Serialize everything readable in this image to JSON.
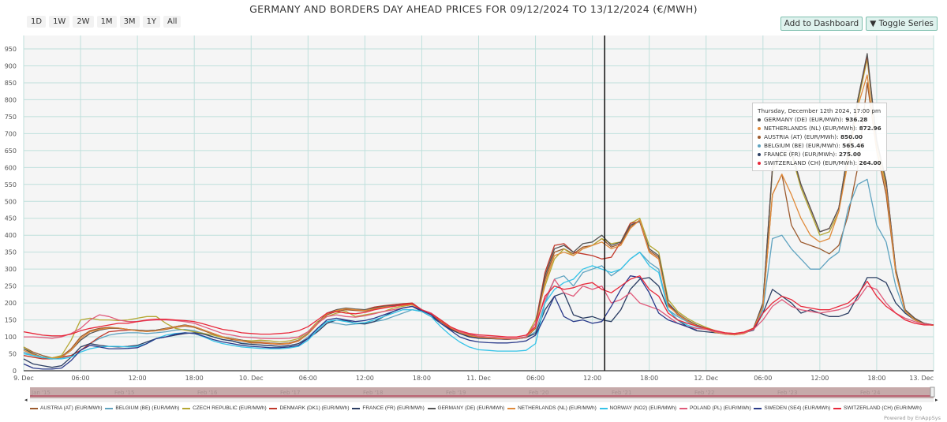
{
  "title": "GERMANY AND BORDERS DAY AHEAD PRICES FOR 09/12/2024 TO 13/12/2024 (€/MWH)",
  "range_buttons": [
    "1D",
    "1W",
    "2W",
    "1M",
    "3M",
    "1Y",
    "All"
  ],
  "toolbar": {
    "add_dashboard": "Add to Dashboard",
    "toggle_series": "Toggle Series"
  },
  "navigator_labels": [
    "Jan '15",
    "Feb '15",
    "Feb '16",
    "Feb '17",
    "Feb '18",
    "Feb '19",
    "Feb '20",
    "Feb '21",
    "Feb '22",
    "Feb '23",
    "Feb '24"
  ],
  "powered_by": "Powered by EnAppSys",
  "tooltip": {
    "header": "Thursday, December 12th 2024, 17:00 pm",
    "rows": [
      {
        "label": "GERMANY (DE) (EUR/MWh): ",
        "value": "936.28",
        "color": "#555555"
      },
      {
        "label": "NETHERLANDS (NL) (EUR/MWh): ",
        "value": "872.96",
        "color": "#e08a3a"
      },
      {
        "label": "AUSTRIA (AT) (EUR/MWh): ",
        "value": "850.00",
        "color": "#9c5a2e"
      },
      {
        "label": "BELGIUM (BE) (EUR/MWh): ",
        "value": "565.46",
        "color": "#5fa3c0"
      },
      {
        "label": "FRANCE (FR) (EUR/MWh): ",
        "value": "275.00",
        "color": "#2c3e63"
      },
      {
        "label": "SWITZERLAND (CH) (EUR/MWh): ",
        "value": "264.00",
        "color": "#e8283a"
      }
    ]
  },
  "chart_data": {
    "type": "line",
    "title": "GERMANY AND BORDERS DAY AHEAD PRICES FOR 09/12/2024 TO 13/12/2024 (€/MWH)",
    "x_start": "2024-12-09 00:00",
    "x_step": "1 hour",
    "x_ticks": [
      "9. Dec",
      "06:00",
      "12:00",
      "18:00",
      "10. Dec",
      "06:00",
      "12:00",
      "18:00",
      "11. Dec",
      "06:00",
      "12:00",
      "18:00",
      "12. Dec",
      "06:00",
      "12:00",
      "18:00",
      "13. Dec"
    ],
    "y_ticks": [
      0,
      50,
      100,
      150,
      200,
      250,
      300,
      350,
      400,
      450,
      500,
      550,
      600,
      650,
      700,
      750,
      800,
      850,
      900,
      950
    ],
    "ylim": [
      0,
      960
    ],
    "grid": true,
    "legend": "bottom",
    "series": [
      {
        "name": "AUSTRIA (AT) (EUR/MWh)",
        "color": "#9c5a2e",
        "values": [
          70,
          55,
          45,
          38,
          42,
          65,
          100,
          118,
          125,
          128,
          126,
          122,
          118,
          116,
          118,
          122,
          128,
          132,
          128,
          118,
          108,
          98,
          92,
          88,
          82,
          82,
          80,
          78,
          80,
          88,
          108,
          138,
          165,
          175,
          180,
          178,
          176,
          182,
          188,
          190,
          193,
          196,
          178,
          168,
          148,
          128,
          112,
          103,
          98,
          96,
          94,
          93,
          94,
          98,
          125,
          270,
          350,
          360,
          345,
          365,
          370,
          390,
          365,
          375,
          425,
          445,
          355,
          335,
          195,
          165,
          148,
          133,
          123,
          113,
          108,
          106,
          110,
          123,
          190,
          520,
          580,
          430,
          380,
          370,
          360,
          345,
          370,
          460,
          600,
          850,
          650,
          520,
          290,
          178,
          152,
          138,
          134
        ]
      },
      {
        "name": "BELGIUM (BE) (EUR/MWh)",
        "color": "#5fa3c0",
        "values": [
          55,
          45,
          38,
          35,
          38,
          45,
          60,
          80,
          95,
          105,
          110,
          112,
          112,
          110,
          112,
          115,
          120,
          122,
          118,
          110,
          100,
          92,
          88,
          82,
          78,
          76,
          74,
          72,
          74,
          80,
          100,
          125,
          145,
          140,
          135,
          138,
          140,
          145,
          150,
          160,
          170,
          180,
          175,
          160,
          145,
          125,
          110,
          100,
          96,
          95,
          94,
          93,
          94,
          98,
          115,
          200,
          270,
          280,
          250,
          290,
          300,
          310,
          280,
          300,
          330,
          350,
          320,
          300,
          180,
          160,
          145,
          130,
          122,
          114,
          110,
          108,
          112,
          120,
          180,
          390,
          400,
          360,
          330,
          300,
          300,
          330,
          350,
          480,
          550,
          565,
          430,
          380,
          250,
          170,
          150,
          138,
          135
        ]
      },
      {
        "name": "CZECH REPUBLIC (EUR/MWh)",
        "color": "#b5a732",
        "values": [
          70,
          50,
          40,
          38,
          45,
          90,
          150,
          155,
          150,
          150,
          148,
          150,
          155,
          160,
          160,
          140,
          125,
          120,
          115,
          110,
          105,
          98,
          95,
          90,
          88,
          90,
          88,
          85,
          88,
          95,
          115,
          145,
          160,
          170,
          175,
          160,
          165,
          170,
          175,
          185,
          190,
          195,
          180,
          165,
          150,
          130,
          115,
          105,
          100,
          98,
          96,
          95,
          95,
          100,
          150,
          250,
          330,
          360,
          340,
          360,
          370,
          390,
          375,
          380,
          435,
          450,
          370,
          350,
          210,
          175,
          155,
          140,
          128,
          118,
          112,
          110,
          114,
          126,
          195,
          590,
          640,
          640,
          540,
          470,
          400,
          410,
          470,
          640,
          790,
          920,
          670,
          550,
          295,
          178,
          152,
          138,
          134
        ]
      },
      {
        "name": "DENMARK (DK1) (EUR/MWh)",
        "color": "#c0392b",
        "values": [
          45,
          40,
          35,
          35,
          40,
          45,
          60,
          80,
          100,
          115,
          118,
          120,
          120,
          118,
          120,
          125,
          130,
          135,
          130,
          120,
          110,
          100,
          95,
          90,
          85,
          83,
          80,
          78,
          80,
          88,
          110,
          140,
          170,
          180,
          183,
          180,
          180,
          188,
          192,
          195,
          198,
          200,
          180,
          165,
          145,
          125,
          112,
          103,
          98,
          96,
          94,
          93,
          94,
          100,
          140,
          290,
          370,
          375,
          350,
          345,
          340,
          330,
          335,
          380,
          435,
          440,
          350,
          330,
          195,
          168,
          148,
          133,
          124,
          114,
          109,
          107,
          111,
          124,
          200,
          600,
          650,
          650,
          550,
          480,
          410,
          420,
          480,
          650,
          800,
          930,
          680,
          560,
          300,
          180,
          155,
          140,
          135
        ]
      },
      {
        "name": "FRANCE (FR) (EUR/MWh)",
        "color": "#2c3e63",
        "values": [
          35,
          20,
          15,
          10,
          15,
          40,
          70,
          80,
          75,
          72,
          70,
          72,
          75,
          85,
          95,
          100,
          105,
          110,
          112,
          108,
          100,
          92,
          88,
          80,
          78,
          76,
          74,
          72,
          74,
          80,
          95,
          115,
          140,
          150,
          148,
          140,
          138,
          145,
          160,
          175,
          185,
          190,
          175,
          160,
          140,
          122,
          110,
          100,
          96,
          95,
          94,
          93,
          94,
          98,
          110,
          180,
          220,
          230,
          165,
          155,
          160,
          150,
          145,
          180,
          240,
          270,
          275,
          250,
          180,
          150,
          130,
          118,
          115,
          112,
          110,
          108,
          112,
          120,
          170,
          240,
          220,
          200,
          170,
          180,
          170,
          160,
          160,
          170,
          220,
          275,
          275,
          260,
          200,
          170,
          150,
          138,
          135
        ]
      },
      {
        "name": "GERMANY (DE) (EUR/MWh)",
        "color": "#555555",
        "values": [
          65,
          50,
          40,
          35,
          40,
          60,
          90,
          110,
          120,
          125,
          125,
          122,
          120,
          118,
          120,
          125,
          130,
          135,
          130,
          120,
          110,
          100,
          95,
          90,
          85,
          85,
          82,
          80,
          82,
          90,
          110,
          140,
          170,
          180,
          185,
          182,
          180,
          185,
          190,
          192,
          195,
          198,
          180,
          170,
          150,
          130,
          115,
          105,
          100,
          98,
          96,
          95,
          95,
          100,
          130,
          280,
          360,
          370,
          350,
          375,
          380,
          400,
          370,
          380,
          430,
          440,
          360,
          340,
          200,
          170,
          150,
          135,
          125,
          115,
          110,
          108,
          112,
          125,
          200,
          600,
          650,
          650,
          550,
          480,
          410,
          420,
          480,
          650,
          800,
          936.28,
          680,
          560,
          300,
          180,
          155,
          140,
          135
        ]
      },
      {
        "name": "NETHERLANDS (NL) (EUR/MWh)",
        "color": "#e08a3a",
        "values": [
          60,
          48,
          40,
          36,
          40,
          60,
          95,
          115,
          122,
          126,
          126,
          122,
          118,
          116,
          118,
          124,
          130,
          134,
          130,
          120,
          110,
          100,
          94,
          89,
          84,
          84,
          81,
          79,
          81,
          89,
          108,
          138,
          168,
          178,
          183,
          180,
          178,
          183,
          188,
          190,
          193,
          196,
          178,
          168,
          148,
          128,
          113,
          104,
          99,
          97,
          95,
          94,
          94,
          99,
          128,
          260,
          340,
          350,
          340,
          360,
          370,
          380,
          360,
          370,
          420,
          445,
          350,
          330,
          190,
          168,
          148,
          133,
          123,
          113,
          108,
          106,
          110,
          123,
          190,
          520,
          580,
          520,
          450,
          400,
          380,
          390,
          470,
          620,
          780,
          872.96,
          650,
          540,
          290,
          175,
          150,
          138,
          134
        ]
      },
      {
        "name": "NORWAY (NO2) (EUR/MWh)",
        "color": "#35c3e8",
        "values": [
          50,
          45,
          40,
          35,
          35,
          40,
          55,
          65,
          70,
          72,
          72,
          70,
          72,
          80,
          95,
          105,
          110,
          112,
          110,
          100,
          88,
          80,
          75,
          70,
          68,
          66,
          65,
          65,
          67,
          72,
          90,
          120,
          145,
          150,
          145,
          140,
          142,
          150,
          160,
          170,
          180,
          180,
          175,
          160,
          130,
          105,
          85,
          70,
          62,
          60,
          58,
          58,
          58,
          60,
          80,
          200,
          240,
          260,
          270,
          300,
          310,
          300,
          290,
          300,
          330,
          350,
          310,
          290,
          180,
          150,
          135,
          125
        ]
      },
      {
        "name": "POLAND (PL) (EUR/MWh)",
        "color": "#e05a7a",
        "values": [
          100,
          100,
          98,
          96,
          100,
          110,
          125,
          150,
          165,
          160,
          150,
          145,
          145,
          148,
          150,
          150,
          148,
          145,
          140,
          130,
          120,
          110,
          105,
          100,
          98,
          96,
          95,
          95,
          96,
          100,
          115,
          140,
          160,
          165,
          160,
          158,
          162,
          168,
          175,
          180,
          185,
          190,
          180,
          170,
          150,
          130,
          115,
          108,
          102,
          100,
          98,
          96,
          96,
          100,
          140,
          210,
          270,
          230,
          220,
          250,
          240,
          250,
          200,
          210,
          230,
          200,
          190,
          180,
          160,
          140,
          130,
          125,
          122,
          115,
          110,
          108,
          112,
          122,
          150,
          190,
          210,
          190,
          180,
          175,
          170,
          175,
          180,
          190,
          210,
          250,
          240,
          200,
          170,
          155,
          145,
          138,
          135
        ]
      },
      {
        "name": "SWEDEN (SE4) (EUR/MWh)",
        "color": "#2a3a8a",
        "values": [
          20,
          8,
          5,
          5,
          8,
          30,
          60,
          75,
          70,
          65,
          65,
          66,
          68,
          80,
          95,
          100,
          108,
          112,
          110,
          102,
          92,
          85,
          80,
          75,
          72,
          70,
          68,
          68,
          70,
          75,
          95,
          125,
          150,
          155,
          150,
          145,
          148,
          155,
          165,
          175,
          185,
          190,
          178,
          165,
          140,
          120,
          100,
          90,
          85,
          83,
          82,
          82,
          84,
          88,
          105,
          160,
          220,
          160,
          145,
          150,
          140,
          145,
          190,
          240,
          280,
          275,
          230,
          170,
          150,
          140,
          130,
          120
        ]
      },
      {
        "name": "SWITZERLAND (CH) (EUR/MWh)",
        "color": "#e8283a",
        "values": [
          115,
          110,
          105,
          103,
          103,
          108,
          118,
          125,
          130,
          135,
          140,
          140,
          145,
          150,
          152,
          152,
          150,
          148,
          145,
          138,
          130,
          122,
          118,
          112,
          110,
          108,
          108,
          110,
          112,
          118,
          130,
          150,
          170,
          175,
          170,
          168,
          172,
          180,
          185,
          190,
          195,
          198,
          180,
          168,
          150,
          130,
          118,
          110,
          106,
          104,
          102,
          100,
          100,
          105,
          130,
          220,
          250,
          240,
          245,
          255,
          260,
          240,
          230,
          250,
          270,
          280,
          240,
          220,
          170,
          150,
          140,
          132,
          125,
          118,
          112,
          110,
          114,
          125,
          170,
          200,
          220,
          210,
          190,
          185,
          180,
          180,
          190,
          200,
          225,
          264,
          220,
          190,
          170,
          150,
          140,
          135,
          135
        ]
      }
    ]
  }
}
